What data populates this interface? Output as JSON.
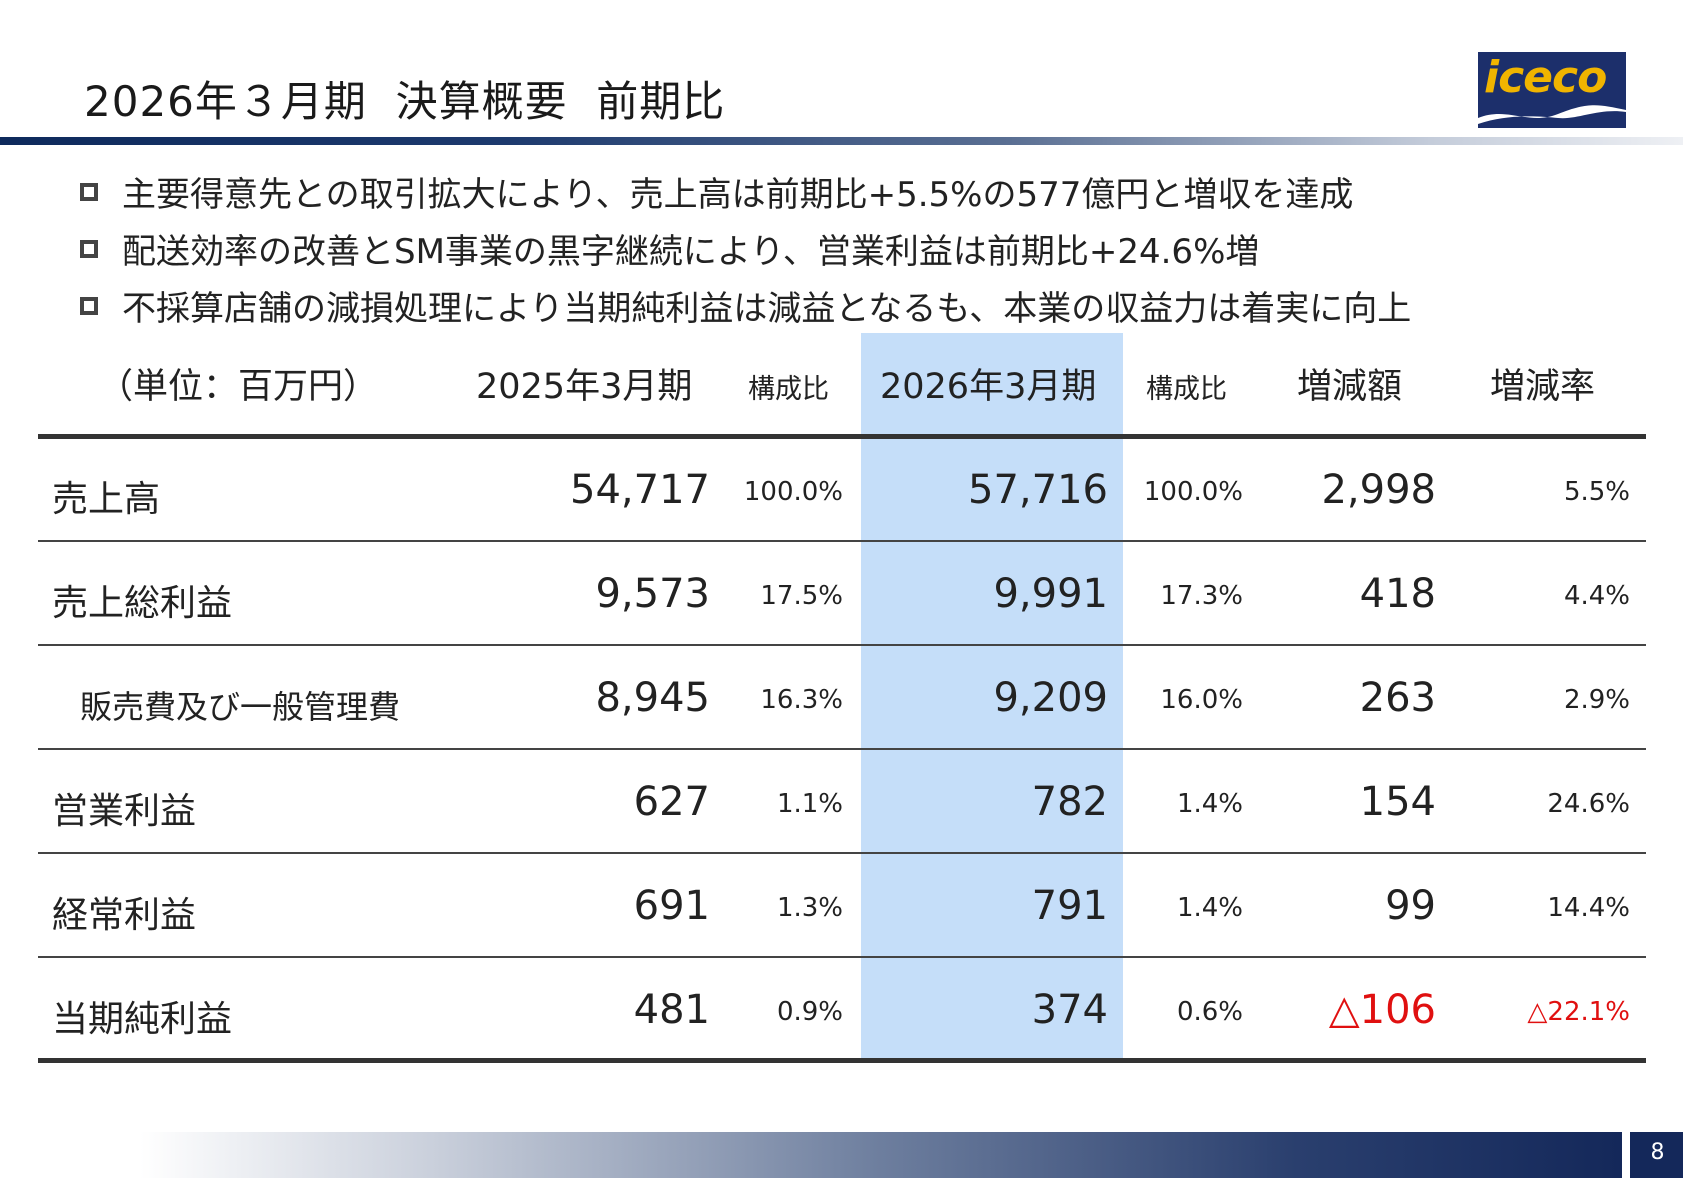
{
  "title": "2026年３月期  決算概要  前期比",
  "logo": {
    "text": "iceco",
    "icon": "iceco-logo"
  },
  "bullets": [
    "主要得意先との取引拡大により、売上高は前期比+5.5%の577億円と増収を達成",
    "配送効率の改善とSM事業の黒字継続により、営業利益は前期比+24.6%増",
    "不採算店舗の減損処理により当期純利益は減益となるも、本業の収益力は着実に向上"
  ],
  "table": {
    "headers": {
      "unit": "（単位：百万円）",
      "prev": "2025年3月期",
      "prev_ratio": "構成比",
      "curr": "2026年3月期",
      "curr_ratio": "構成比",
      "diff": "増減額",
      "rate": "増減率"
    },
    "rows": [
      {
        "label": "売上高",
        "prev": "54,717",
        "prev_ratio": "100.0%",
        "curr": "57,716",
        "curr_ratio": "100.0%",
        "diff": "2,998",
        "rate": "5.5%"
      },
      {
        "label": "売上総利益",
        "prev": "9,573",
        "prev_ratio": "17.5%",
        "curr": "9,991",
        "curr_ratio": "17.3%",
        "diff": "418",
        "rate": "4.4%"
      },
      {
        "label": "販売費及び一般管理費",
        "prev": "8,945",
        "prev_ratio": "16.3%",
        "curr": "9,209",
        "curr_ratio": "16.0%",
        "diff": "263",
        "rate": "2.9%"
      },
      {
        "label": "営業利益",
        "prev": "627",
        "prev_ratio": "1.1%",
        "curr": "782",
        "curr_ratio": "1.4%",
        "diff": "154",
        "rate": "24.6%"
      },
      {
        "label": "経常利益",
        "prev": "691",
        "prev_ratio": "1.3%",
        "curr": "791",
        "curr_ratio": "1.4%",
        "diff": "99",
        "rate": "14.4%"
      },
      {
        "label": "当期純利益",
        "prev": "481",
        "prev_ratio": "0.9%",
        "curr": "374",
        "curr_ratio": "0.6%",
        "diff": "△106",
        "rate": "△22.1%"
      }
    ]
  },
  "colors": {
    "highlight_column": "#c5def9",
    "negative": "#e01010",
    "brand_navy": "#14285a"
  },
  "page_number": "8"
}
